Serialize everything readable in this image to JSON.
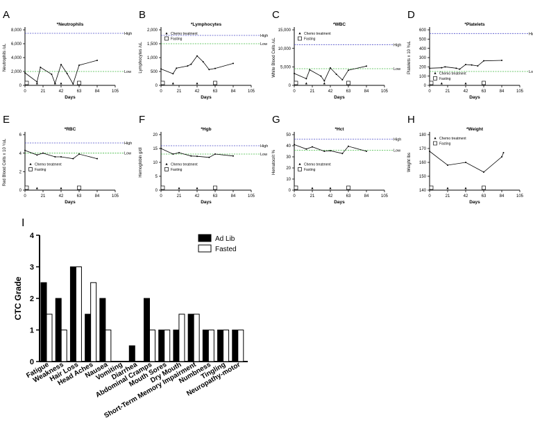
{
  "colors": {
    "high_line": "#4b4bc8",
    "low_line": "#3cb83c",
    "ink": "#000000",
    "bar_fasted": "#ffffff"
  },
  "small_panels": [
    {
      "letter": "A",
      "title": "*Neutrophils",
      "ylabel": "Neutrophils /uL",
      "yticks": [
        "0",
        "2,000",
        "4,000",
        "6,000",
        "8,000"
      ],
      "ylim": [
        0,
        8000
      ],
      "xticks": [
        "0",
        "21",
        "42",
        "63",
        "84",
        "105"
      ],
      "xlim": [
        0,
        105
      ],
      "xlabel": "Days",
      "high": 7500,
      "low": 2000,
      "high_label": "High",
      "low_label": "Low",
      "x": [
        0,
        14,
        18,
        31,
        35,
        42,
        49,
        56,
        63,
        84
      ],
      "y": [
        1800,
        500,
        2600,
        1600,
        300,
        3000,
        1700,
        200,
        2900,
        3600
      ],
      "chemo": [
        14,
        35,
        42
      ],
      "fasting": [
        2,
        63
      ],
      "legend": {
        "chemo": "Chemo treatment",
        "fasting": "Fasting"
      },
      "legend_pos": "none"
    },
    {
      "letter": "B",
      "title": "*Lymphocytes",
      "ylabel": "Lymphocytes /uL",
      "yticks": [
        "0",
        "500",
        "1,000",
        "1,500",
        "2,000"
      ],
      "ylim": [
        0,
        2000
      ],
      "xticks": [
        "0",
        "21",
        "42",
        "63",
        "84",
        "105"
      ],
      "xlim": [
        0,
        105
      ],
      "xlabel": "Days",
      "high": 1800,
      "low": 1500,
      "high_label": "High",
      "low_label": "Low",
      "x": [
        0,
        14,
        18,
        31,
        35,
        42,
        49,
        56,
        63,
        84
      ],
      "y": [
        590,
        420,
        620,
        700,
        760,
        1060,
        850,
        570,
        610,
        790
      ],
      "chemo": [
        14,
        42
      ],
      "fasting": [
        2,
        63
      ],
      "legend": {
        "chemo": "Chemo treatment",
        "fasting": "Fasting"
      },
      "legend_pos": "top"
    },
    {
      "letter": "C",
      "title": "*WBC",
      "ylabel": "White Blood Cells /uL",
      "yticks": [
        "0",
        "5,000",
        "10,000",
        "15,000"
      ],
      "ylim": [
        0,
        15000
      ],
      "xticks": [
        "0",
        "21",
        "42",
        "63",
        "84",
        "105"
      ],
      "xlim": [
        0,
        105
      ],
      "xlabel": "Days",
      "high": 11000,
      "low": 4500,
      "high_label": "High",
      "low_label": "Low",
      "x": [
        0,
        14,
        18,
        31,
        35,
        42,
        49,
        56,
        63,
        84
      ],
      "y": [
        3200,
        1800,
        4200,
        2500,
        1200,
        4700,
        3000,
        1500,
        4100,
        5200
      ],
      "chemo": [
        14,
        35
      ],
      "fasting": [
        2,
        63
      ],
      "legend": {
        "chemo": "Chemo treatment",
        "fasting": "Fasting"
      },
      "legend_pos": "top"
    },
    {
      "letter": "D",
      "title": "*Platelets",
      "ylabel": "Platelets x 10 ³/uL",
      "yticks": [
        "0",
        "100",
        "200",
        "300",
        "400",
        "500",
        "600"
      ],
      "ylim": [
        0,
        600
      ],
      "xticks": [
        "0",
        "21",
        "42",
        "63",
        "84",
        "105"
      ],
      "xlim": [
        0,
        105
      ],
      "xlabel": "Days",
      "high": 560,
      "low": 150,
      "high_label": "High",
      "low_label": "Low",
      "x": [
        0,
        14,
        18,
        31,
        35,
        42,
        49,
        56,
        63,
        84
      ],
      "y": [
        185,
        190,
        200,
        185,
        175,
        225,
        220,
        210,
        265,
        270
      ],
      "chemo": [
        14,
        42
      ],
      "fasting": [
        2,
        63
      ],
      "legend": {
        "chemo": "Chemo treatment",
        "fasting": "Fasting"
      },
      "legend_pos": "low"
    },
    {
      "letter": "E",
      "title": "*RBC",
      "ylabel": "Red Blood Cells x 10 ⁶/uL",
      "yticks": [
        "0",
        "2",
        "4",
        "6"
      ],
      "ylim": [
        0,
        6
      ],
      "xticks": [
        "0",
        "21",
        "42",
        "63",
        "84",
        "105"
      ],
      "xlim": [
        0,
        105
      ],
      "xlabel": "Days",
      "high": 5.1,
      "low": 4.0,
      "high_label": "High",
      "low_label": "Low",
      "x": [
        0,
        14,
        21,
        35,
        42,
        56,
        63,
        84
      ],
      "y": [
        4.3,
        3.8,
        4.0,
        3.6,
        3.6,
        3.4,
        3.9,
        3.4
      ],
      "chemo": [
        14,
        42
      ],
      "fasting": [
        2,
        63
      ],
      "legend": {
        "chemo": "Chemo treatment",
        "fasting": "Fasting"
      },
      "legend_pos": "mid"
    },
    {
      "letter": "F",
      "title": "*Hgb",
      "ylabel": "Hemoglobin g/dl",
      "yticks": [
        "0",
        "5",
        "10",
        "15",
        "20"
      ],
      "ylim": [
        0,
        20
      ],
      "xticks": [
        "0",
        "21",
        "42",
        "63",
        "84",
        "105"
      ],
      "xlim": [
        0,
        105
      ],
      "xlabel": "Days",
      "high": 16,
      "low": 13,
      "high_label": "High",
      "low_label": "Low",
      "x": [
        0,
        14,
        21,
        35,
        42,
        56,
        63,
        84
      ],
      "y": [
        15,
        13,
        13.5,
        12.3,
        12.2,
        11.8,
        13,
        12.3
      ],
      "chemo": [
        21,
        42
      ],
      "fasting": [
        2,
        63
      ],
      "legend": {
        "chemo": "Chemo treatment",
        "fasting": "Fasting"
      },
      "legend_pos": "mid"
    },
    {
      "letter": "G",
      "title": "*Hct",
      "ylabel": "Hematocrit %",
      "yticks": [
        "0",
        "10",
        "20",
        "30",
        "40",
        "50"
      ],
      "ylim": [
        0,
        50
      ],
      "xticks": [
        "0",
        "21",
        "42",
        "63",
        "84",
        "105"
      ],
      "xlim": [
        0,
        105
      ],
      "xlabel": "Days",
      "high": 46,
      "low": 36,
      "high_label": "High",
      "low_label": "Low",
      "x": [
        0,
        14,
        21,
        35,
        42,
        56,
        63,
        84
      ],
      "y": [
        41,
        37,
        39,
        35,
        35.5,
        33,
        39.5,
        35
      ],
      "chemo": [
        21,
        42
      ],
      "fasting": [
        2,
        63
      ],
      "legend": {
        "chemo": "Chemo treatment",
        "fasting": "Fasting"
      },
      "legend_pos": "mid"
    },
    {
      "letter": "H",
      "title": "*Weight",
      "ylabel": "Weight lbs",
      "yticks": [
        "140",
        "150",
        "160",
        "170",
        "180"
      ],
      "ylim": [
        140,
        180
      ],
      "xticks": [
        "0",
        "21",
        "42",
        "63",
        "84",
        "105"
      ],
      "xlim": [
        0,
        105
      ],
      "xlabel": "Days",
      "high": null,
      "low": null,
      "high_label": "",
      "low_label": "",
      "x": [
        0,
        21,
        42,
        63,
        84,
        86
      ],
      "y": [
        168,
        158,
        160,
        153,
        164,
        167
      ],
      "chemo": [
        21,
        42
      ],
      "fasting": [
        2,
        63
      ],
      "legend": {
        "chemo": "Chemo treatment",
        "fasting": "Fasting"
      },
      "legend_pos": "top"
    }
  ],
  "chart_data": {
    "type": "bar",
    "letter": "I",
    "ylabel": "CTC Grade",
    "ylim": [
      0,
      4
    ],
    "yticks": [
      "0",
      "1",
      "2",
      "3",
      "4"
    ],
    "categories": [
      "Fatigue",
      "Weakness",
      "Hair Loss",
      "Head Aches",
      "Nausea",
      "Vomiting",
      "Diarrhea",
      "Abdominal Cramps",
      "Mouth Sores",
      "Dry Mouth",
      "Short-Term Memory Impairment",
      "Numbness",
      "Tingling",
      "Neuropathy-motor"
    ],
    "series": [
      {
        "name": "Ad Lib",
        "color": "#000000",
        "values": [
          2.5,
          2.0,
          3.0,
          1.5,
          2.0,
          0,
          0.5,
          2.0,
          1.0,
          1.0,
          1.5,
          1.0,
          1.0,
          1.0
        ]
      },
      {
        "name": "Fasted",
        "color": "#ffffff",
        "values": [
          1.5,
          1.0,
          3.0,
          2.5,
          1.0,
          0,
          0,
          1.0,
          1.0,
          1.5,
          1.5,
          1.0,
          1.0,
          1.0
        ]
      }
    ],
    "legend_position": "top-right"
  }
}
